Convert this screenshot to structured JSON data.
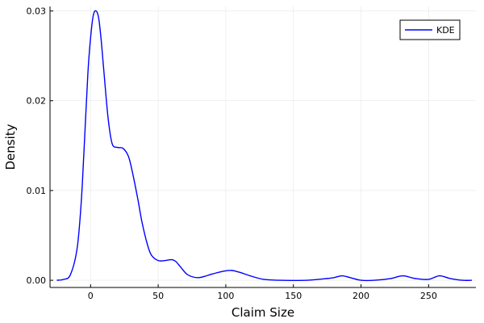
{
  "chart_data": {
    "type": "line",
    "title": "",
    "xlabel": "Claim Size",
    "ylabel": "Density",
    "xlim": [
      -30,
      285
    ],
    "ylim": [
      -0.0008,
      0.0305
    ],
    "x_ticks": [
      0,
      50,
      100,
      150,
      200,
      250
    ],
    "x_tick_labels": [
      "0",
      "50",
      "100",
      "150",
      "200",
      "250"
    ],
    "y_ticks": [
      0.0,
      0.01,
      0.02,
      0.03
    ],
    "y_tick_labels": [
      "0.00",
      "0.01",
      "0.02",
      "0.03"
    ],
    "grid": true,
    "legend": {
      "position": "top-right",
      "entries": [
        "KDE"
      ]
    },
    "series": [
      {
        "name": "KDE",
        "color": "#0000ff",
        "x": [
          -25,
          -20,
          -15,
          -10,
          -7,
          -5,
          -2,
          0,
          2,
          4,
          6,
          8,
          10,
          13,
          16,
          20,
          24,
          28,
          31,
          35,
          38,
          42,
          45,
          50,
          55,
          60,
          63,
          67,
          72,
          80,
          90,
          98,
          104,
          110,
          118,
          128,
          140,
          160,
          175,
          180,
          186,
          192,
          200,
          210,
          222,
          231,
          240,
          250,
          258,
          266,
          275,
          282
        ],
        "y": [
          0.0,
          0.0001,
          0.0006,
          0.0035,
          0.0085,
          0.014,
          0.023,
          0.027,
          0.0295,
          0.03,
          0.0292,
          0.0265,
          0.023,
          0.018,
          0.0152,
          0.0148,
          0.0147,
          0.0138,
          0.012,
          0.009,
          0.0065,
          0.004,
          0.0028,
          0.0022,
          0.0022,
          0.0023,
          0.0021,
          0.0014,
          0.0006,
          0.0003,
          0.0007,
          0.001,
          0.0011,
          0.0009,
          0.0005,
          0.0001,
          0.0,
          0.0,
          0.0002,
          0.0003,
          0.0005,
          0.0003,
          0.0,
          0.0,
          0.0002,
          0.0005,
          0.0002,
          0.0001,
          0.0005,
          0.0002,
          0.0,
          0.0
        ]
      }
    ]
  }
}
